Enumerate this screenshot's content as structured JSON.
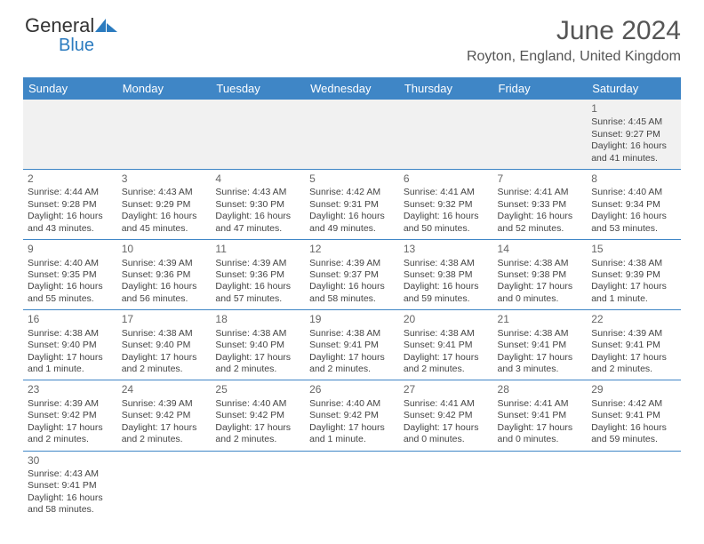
{
  "logo": {
    "text1": "General",
    "text2": "Blue"
  },
  "title": "June 2024",
  "location": "Royton, England, United Kingdom",
  "colors": {
    "header_bg": "#3f86c6",
    "header_text": "#ffffff",
    "grid_line": "#3f86c6",
    "firstrow_bg": "#f1f1f1",
    "text": "#444444",
    "title_text": "#555555",
    "logo_accent": "#2b7bbf"
  },
  "weekdays": [
    "Sunday",
    "Monday",
    "Tuesday",
    "Wednesday",
    "Thursday",
    "Friday",
    "Saturday"
  ],
  "weeks": [
    [
      {
        "day": "",
        "lines": [
          "",
          "",
          "",
          ""
        ]
      },
      {
        "day": "",
        "lines": [
          "",
          "",
          "",
          ""
        ]
      },
      {
        "day": "",
        "lines": [
          "",
          "",
          "",
          ""
        ]
      },
      {
        "day": "",
        "lines": [
          "",
          "",
          "",
          ""
        ]
      },
      {
        "day": "",
        "lines": [
          "",
          "",
          "",
          ""
        ]
      },
      {
        "day": "",
        "lines": [
          "",
          "",
          "",
          ""
        ]
      },
      {
        "day": "1",
        "lines": [
          "Sunrise: 4:45 AM",
          "Sunset: 9:27 PM",
          "Daylight: 16 hours",
          "and 41 minutes."
        ]
      }
    ],
    [
      {
        "day": "2",
        "lines": [
          "Sunrise: 4:44 AM",
          "Sunset: 9:28 PM",
          "Daylight: 16 hours",
          "and 43 minutes."
        ]
      },
      {
        "day": "3",
        "lines": [
          "Sunrise: 4:43 AM",
          "Sunset: 9:29 PM",
          "Daylight: 16 hours",
          "and 45 minutes."
        ]
      },
      {
        "day": "4",
        "lines": [
          "Sunrise: 4:43 AM",
          "Sunset: 9:30 PM",
          "Daylight: 16 hours",
          "and 47 minutes."
        ]
      },
      {
        "day": "5",
        "lines": [
          "Sunrise: 4:42 AM",
          "Sunset: 9:31 PM",
          "Daylight: 16 hours",
          "and 49 minutes."
        ]
      },
      {
        "day": "6",
        "lines": [
          "Sunrise: 4:41 AM",
          "Sunset: 9:32 PM",
          "Daylight: 16 hours",
          "and 50 minutes."
        ]
      },
      {
        "day": "7",
        "lines": [
          "Sunrise: 4:41 AM",
          "Sunset: 9:33 PM",
          "Daylight: 16 hours",
          "and 52 minutes."
        ]
      },
      {
        "day": "8",
        "lines": [
          "Sunrise: 4:40 AM",
          "Sunset: 9:34 PM",
          "Daylight: 16 hours",
          "and 53 minutes."
        ]
      }
    ],
    [
      {
        "day": "9",
        "lines": [
          "Sunrise: 4:40 AM",
          "Sunset: 9:35 PM",
          "Daylight: 16 hours",
          "and 55 minutes."
        ]
      },
      {
        "day": "10",
        "lines": [
          "Sunrise: 4:39 AM",
          "Sunset: 9:36 PM",
          "Daylight: 16 hours",
          "and 56 minutes."
        ]
      },
      {
        "day": "11",
        "lines": [
          "Sunrise: 4:39 AM",
          "Sunset: 9:36 PM",
          "Daylight: 16 hours",
          "and 57 minutes."
        ]
      },
      {
        "day": "12",
        "lines": [
          "Sunrise: 4:39 AM",
          "Sunset: 9:37 PM",
          "Daylight: 16 hours",
          "and 58 minutes."
        ]
      },
      {
        "day": "13",
        "lines": [
          "Sunrise: 4:38 AM",
          "Sunset: 9:38 PM",
          "Daylight: 16 hours",
          "and 59 minutes."
        ]
      },
      {
        "day": "14",
        "lines": [
          "Sunrise: 4:38 AM",
          "Sunset: 9:38 PM",
          "Daylight: 17 hours",
          "and 0 minutes."
        ]
      },
      {
        "day": "15",
        "lines": [
          "Sunrise: 4:38 AM",
          "Sunset: 9:39 PM",
          "Daylight: 17 hours",
          "and 1 minute."
        ]
      }
    ],
    [
      {
        "day": "16",
        "lines": [
          "Sunrise: 4:38 AM",
          "Sunset: 9:40 PM",
          "Daylight: 17 hours",
          "and 1 minute."
        ]
      },
      {
        "day": "17",
        "lines": [
          "Sunrise: 4:38 AM",
          "Sunset: 9:40 PM",
          "Daylight: 17 hours",
          "and 2 minutes."
        ]
      },
      {
        "day": "18",
        "lines": [
          "Sunrise: 4:38 AM",
          "Sunset: 9:40 PM",
          "Daylight: 17 hours",
          "and 2 minutes."
        ]
      },
      {
        "day": "19",
        "lines": [
          "Sunrise: 4:38 AM",
          "Sunset: 9:41 PM",
          "Daylight: 17 hours",
          "and 2 minutes."
        ]
      },
      {
        "day": "20",
        "lines": [
          "Sunrise: 4:38 AM",
          "Sunset: 9:41 PM",
          "Daylight: 17 hours",
          "and 2 minutes."
        ]
      },
      {
        "day": "21",
        "lines": [
          "Sunrise: 4:38 AM",
          "Sunset: 9:41 PM",
          "Daylight: 17 hours",
          "and 3 minutes."
        ]
      },
      {
        "day": "22",
        "lines": [
          "Sunrise: 4:39 AM",
          "Sunset: 9:41 PM",
          "Daylight: 17 hours",
          "and 2 minutes."
        ]
      }
    ],
    [
      {
        "day": "23",
        "lines": [
          "Sunrise: 4:39 AM",
          "Sunset: 9:42 PM",
          "Daylight: 17 hours",
          "and 2 minutes."
        ]
      },
      {
        "day": "24",
        "lines": [
          "Sunrise: 4:39 AM",
          "Sunset: 9:42 PM",
          "Daylight: 17 hours",
          "and 2 minutes."
        ]
      },
      {
        "day": "25",
        "lines": [
          "Sunrise: 4:40 AM",
          "Sunset: 9:42 PM",
          "Daylight: 17 hours",
          "and 2 minutes."
        ]
      },
      {
        "day": "26",
        "lines": [
          "Sunrise: 4:40 AM",
          "Sunset: 9:42 PM",
          "Daylight: 17 hours",
          "and 1 minute."
        ]
      },
      {
        "day": "27",
        "lines": [
          "Sunrise: 4:41 AM",
          "Sunset: 9:42 PM",
          "Daylight: 17 hours",
          "and 0 minutes."
        ]
      },
      {
        "day": "28",
        "lines": [
          "Sunrise: 4:41 AM",
          "Sunset: 9:41 PM",
          "Daylight: 17 hours",
          "and 0 minutes."
        ]
      },
      {
        "day": "29",
        "lines": [
          "Sunrise: 4:42 AM",
          "Sunset: 9:41 PM",
          "Daylight: 16 hours",
          "and 59 minutes."
        ]
      }
    ],
    [
      {
        "day": "30",
        "lines": [
          "Sunrise: 4:43 AM",
          "Sunset: 9:41 PM",
          "Daylight: 16 hours",
          "and 58 minutes."
        ]
      },
      {
        "day": "",
        "lines": [
          "",
          "",
          "",
          ""
        ]
      },
      {
        "day": "",
        "lines": [
          "",
          "",
          "",
          ""
        ]
      },
      {
        "day": "",
        "lines": [
          "",
          "",
          "",
          ""
        ]
      },
      {
        "day": "",
        "lines": [
          "",
          "",
          "",
          ""
        ]
      },
      {
        "day": "",
        "lines": [
          "",
          "",
          "",
          ""
        ]
      },
      {
        "day": "",
        "lines": [
          "",
          "",
          "",
          ""
        ]
      }
    ]
  ]
}
